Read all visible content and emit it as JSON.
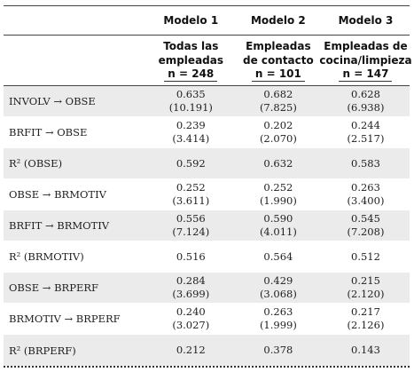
{
  "header": {
    "models": [
      "Modelo 1",
      "Modelo 2",
      "Modelo 3"
    ],
    "groups": [
      {
        "line1": "Todas las",
        "line2": "empleadas",
        "n": "n = 248"
      },
      {
        "line1": "Empleadas",
        "line2": "de contacto",
        "n": "n = 101"
      },
      {
        "line1": "Empleadas de",
        "line2": "cocina/limpieza",
        "n": "n = 147"
      }
    ]
  },
  "rows": [
    {
      "label": "INVOLV → OBSE",
      "values": [
        "0.635",
        "0.682",
        "0.628"
      ],
      "tvalues": [
        "(10.191)",
        "(7.825)",
        "(6.938)"
      ]
    },
    {
      "label": "BRFIT → OBSE",
      "values": [
        "0.239",
        "0.202",
        "0.244"
      ],
      "tvalues": [
        "(3.414)",
        "(2.070)",
        "(2.517)"
      ]
    },
    {
      "label": "R² (OBSE)",
      "values": [
        "0.592",
        "0.632",
        "0.583"
      ]
    },
    {
      "label": "OBSE → BRMOTIV",
      "values": [
        "0.252",
        "0.252",
        "0.263"
      ],
      "tvalues": [
        "(3.611)",
        "(1.990)",
        "(3.400)"
      ]
    },
    {
      "label": "BRFIT → BRMOTIV",
      "values": [
        "0.556",
        "0.590",
        "0.545"
      ],
      "tvalues": [
        "(7.124)",
        "(4.011)",
        "(7.208)"
      ]
    },
    {
      "label": "R² (BRMOTIV)",
      "values": [
        "0.516",
        "0.564",
        "0.512"
      ]
    },
    {
      "label": "OBSE → BRPERF",
      "values": [
        "0.284",
        "0.429",
        "0.215"
      ],
      "tvalues": [
        "(3.699)",
        "(3.068)",
        "(2.120)"
      ]
    },
    {
      "label": "BRMOTIV → BRPERF",
      "values": [
        "0.240",
        "0.263",
        "0.217"
      ],
      "tvalues": [
        "(3.027)",
        "(1.999)",
        "(2.126)"
      ]
    },
    {
      "label": "R² (BRPERF)",
      "values": [
        "0.212",
        "0.378",
        "0.143"
      ]
    }
  ]
}
